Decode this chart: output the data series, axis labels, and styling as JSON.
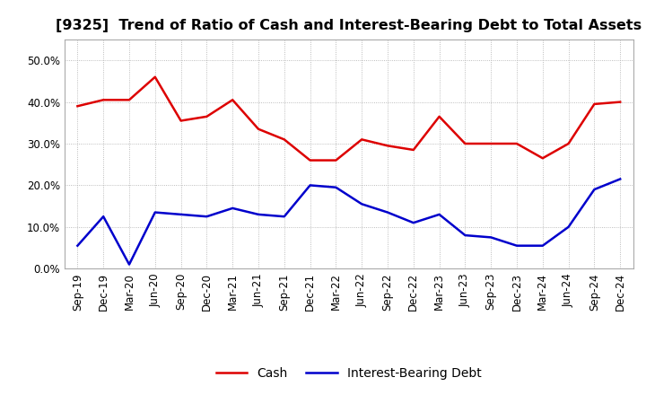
{
  "title": "[9325]  Trend of Ratio of Cash and Interest-Bearing Debt to Total Assets",
  "x_labels": [
    "Sep-19",
    "Dec-19",
    "Mar-20",
    "Jun-20",
    "Sep-20",
    "Dec-20",
    "Mar-21",
    "Jun-21",
    "Sep-21",
    "Dec-21",
    "Mar-22",
    "Jun-22",
    "Sep-22",
    "Dec-22",
    "Mar-23",
    "Jun-23",
    "Sep-23",
    "Dec-23",
    "Mar-24",
    "Jun-24",
    "Sep-24",
    "Dec-24"
  ],
  "cash": [
    0.39,
    0.405,
    0.405,
    0.46,
    0.355,
    0.365,
    0.405,
    0.335,
    0.31,
    0.26,
    0.26,
    0.31,
    0.295,
    0.285,
    0.365,
    0.3,
    0.3,
    0.3,
    0.265,
    0.3,
    0.395,
    0.4
  ],
  "debt": [
    0.055,
    0.125,
    0.01,
    0.135,
    0.13,
    0.125,
    0.145,
    0.13,
    0.125,
    0.2,
    0.195,
    0.155,
    0.135,
    0.11,
    0.13,
    0.08,
    0.075,
    0.055,
    0.055,
    0.1,
    0.19,
    0.215
  ],
  "cash_color": "#dd0000",
  "debt_color": "#0000cc",
  "ylim": [
    0.0,
    0.55
  ],
  "yticks": [
    0.0,
    0.1,
    0.2,
    0.3,
    0.4,
    0.5
  ],
  "legend_labels": [
    "Cash",
    "Interest-Bearing Debt"
  ],
  "background_color": "#ffffff",
  "grid_color": "#aaaaaa",
  "title_fontsize": 11.5,
  "tick_fontsize": 8.5,
  "legend_fontsize": 10
}
